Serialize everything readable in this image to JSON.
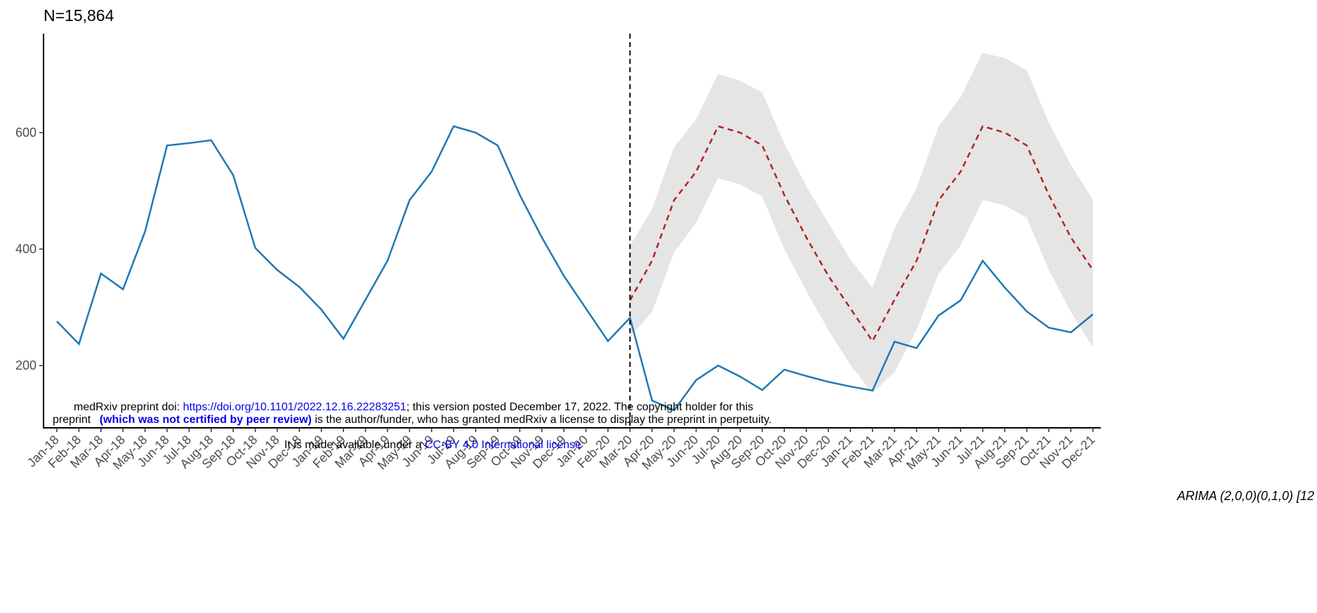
{
  "chart_data": {
    "type": "line",
    "title": "N=15,864",
    "caption": "ARIMA (2,0,0)(0,1,0) [12",
    "categories": [
      "Jan-18",
      "Feb-18",
      "Mar-18",
      "Apr-18",
      "May-18",
      "Jun-18",
      "Jul-18",
      "Aug-18",
      "Sep-18",
      "Oct-18",
      "Nov-18",
      "Dec-18",
      "Jan-19",
      "Feb-19",
      "Mar-19",
      "Apr-19",
      "May-19",
      "Jun-19",
      "Jul-19",
      "Aug-19",
      "Sep-19",
      "Oct-19",
      "Nov-19",
      "Dec-19",
      "Jan-20",
      "Feb-20",
      "Mar-20",
      "Apr-20",
      "May-20",
      "Jun-20",
      "Jul-20",
      "Aug-20",
      "Sep-20",
      "Oct-20",
      "Nov-20",
      "Dec-20",
      "Jan-21",
      "Feb-21",
      "Mar-21",
      "Apr-21",
      "May-21",
      "Jun-21",
      "Jul-21",
      "Aug-21",
      "Sep-21",
      "Oct-21",
      "Nov-21",
      "Dec-21"
    ],
    "series": [
      {
        "color": "#1f78b4",
        "dash": false,
        "values": [
          276,
          237,
          358,
          331,
          430,
          578,
          582,
          587,
          527,
          402,
          364,
          335,
          296,
          246,
          313,
          380,
          484,
          533,
          611,
          600,
          578,
          493,
          420,
          354,
          298,
          242,
          282,
          140,
          123,
          175,
          200,
          181,
          158,
          193,
          182,
          172,
          164,
          157,
          241,
          230,
          286,
          312,
          380,
          334,
          293,
          265,
          257,
          288
        ]
      },
      {
        "color": "#b22222",
        "dash": true,
        "values": [
          null,
          null,
          null,
          null,
          null,
          null,
          null,
          null,
          null,
          null,
          null,
          null,
          null,
          null,
          null,
          null,
          null,
          null,
          null,
          null,
          null,
          null,
          null,
          null,
          null,
          null,
          312,
          380,
          484,
          533,
          611,
          600,
          578,
          493,
          420,
          354,
          298,
          242,
          313,
          380,
          484,
          533,
          611,
          600,
          578,
          493,
          420,
          364
        ]
      }
    ],
    "band": {
      "color": "#e5e5e5",
      "upper": [
        null,
        null,
        null,
        null,
        null,
        null,
        null,
        null,
        null,
        null,
        null,
        null,
        null,
        null,
        null,
        null,
        null,
        null,
        null,
        null,
        null,
        null,
        null,
        null,
        null,
        null,
        406,
        469,
        575,
        623,
        701,
        689,
        669,
        581,
        508,
        445,
        382,
        334,
        436,
        505,
        611,
        661,
        737,
        728,
        707,
        617,
        545,
        484
      ],
      "lower": [
        null,
        null,
        null,
        null,
        null,
        null,
        null,
        null,
        null,
        null,
        null,
        null,
        null,
        null,
        null,
        null,
        null,
        null,
        null,
        null,
        null,
        null,
        null,
        null,
        null,
        null,
        249,
        292,
        394,
        445,
        522,
        511,
        490,
        400,
        328,
        261,
        201,
        153,
        189,
        261,
        358,
        406,
        484,
        475,
        454,
        364,
        292,
        231
      ]
    },
    "vline": "Mar-20",
    "ylim": [
      93,
      770
    ],
    "yticks": [
      200,
      400,
      600
    ],
    "grid": false
  },
  "watermark": {
    "line1": [
      "medRxiv preprint doi: ",
      "https://doi.org/10.1101/2022.12.16.22283251",
      "; this version posted December 17, 2022. The copyright holder for this"
    ],
    "line2": [
      "preprint ",
      "(which was not certified by peer review)",
      " is the author/funder, who has granted medRxiv a license to display the preprint in perpetuity."
    ],
    "line3": [
      "It is made available under a ",
      "CC-BY 4.0 International license"
    ]
  }
}
